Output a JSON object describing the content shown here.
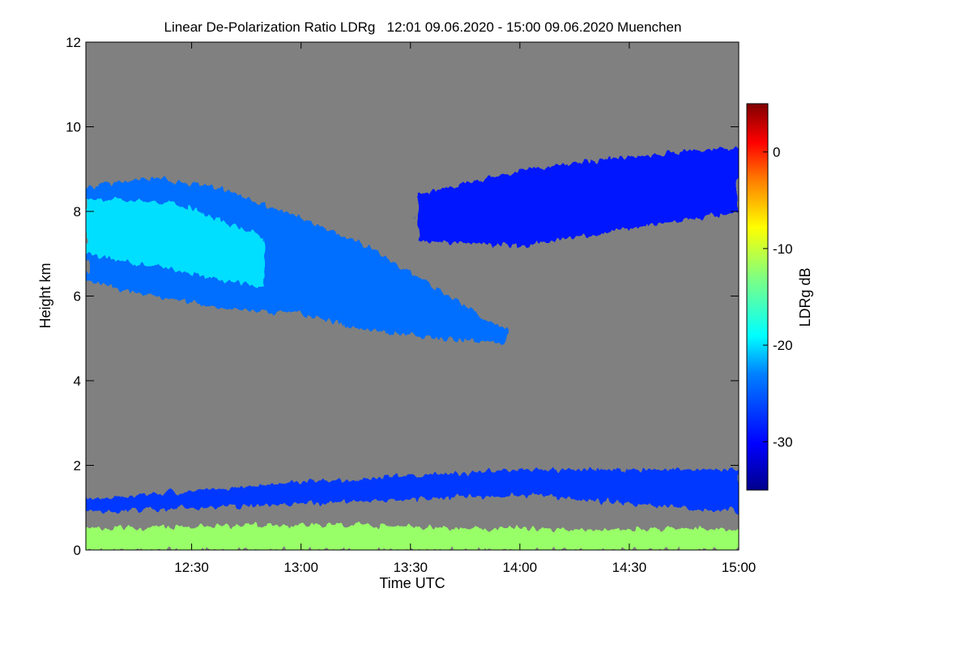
{
  "chart_data": {
    "type": "heatmap",
    "title": "Linear De-Polarization Ratio LDRg   12:01 09.06.2020 - 15:00 09.06.2020 Muenchen",
    "xlabel": "Time UTC",
    "ylabel": "Height km",
    "colorbar_label": "LDRg dB",
    "x_range_minutes_utc": [
      721,
      900
    ],
    "x_ticks": [
      {
        "minute": 750,
        "label": "12:30"
      },
      {
        "minute": 780,
        "label": "13:00"
      },
      {
        "minute": 810,
        "label": "13:30"
      },
      {
        "minute": 840,
        "label": "14:00"
      },
      {
        "minute": 870,
        "label": "14:30"
      },
      {
        "minute": 900,
        "label": "15:00"
      }
    ],
    "y_range_km": [
      0,
      12
    ],
    "y_ticks": [
      {
        "value": 0,
        "label": "0"
      },
      {
        "value": 2,
        "label": "2"
      },
      {
        "value": 4,
        "label": "4"
      },
      {
        "value": 6,
        "label": "6"
      },
      {
        "value": 8,
        "label": "8"
      },
      {
        "value": 10,
        "label": "10"
      },
      {
        "value": 12,
        "label": "12"
      }
    ],
    "colorbar_range_db": [
      -35,
      5
    ],
    "colorbar_ticks": [
      {
        "value": 0,
        "label": "0"
      },
      {
        "value": -10,
        "label": "-10"
      },
      {
        "value": -20,
        "label": "-20"
      },
      {
        "value": -30,
        "label": "-30"
      }
    ],
    "background_color": "#808080",
    "features": [
      {
        "name": "cirrus-main-band",
        "t_start": 721,
        "t_end": 836,
        "top_km": [
          8.6,
          8.8,
          8.5,
          7.9,
          7.2,
          6.2,
          5.2
        ],
        "base_km": [
          6.3,
          6.0,
          5.7,
          5.6,
          5.2,
          5.0,
          4.9
        ],
        "ldr_db": -24
      },
      {
        "name": "cirrus-core",
        "t_start": 721,
        "t_end": 770,
        "top_km": [
          8.3,
          8.2,
          7.4
        ],
        "base_km": [
          7.0,
          6.6,
          6.2
        ],
        "ldr_db": -20
      },
      {
        "name": "cirrus-patches-upper",
        "t_start": 812,
        "t_end": 900,
        "top_km": [
          8.4,
          9.0,
          9.3,
          9.5
        ],
        "base_km": [
          7.3,
          7.2,
          7.6,
          8.0
        ],
        "ldr_db": -29
      },
      {
        "name": "boundary-layer-top",
        "t_start": 721,
        "t_end": 900,
        "top_km": [
          1.2,
          1.6,
          1.9,
          1.9
        ],
        "base_km": [
          0.9,
          1.1,
          1.3,
          0.9
        ],
        "ldr_db": -27
      },
      {
        "name": "near-surface-aerosol",
        "t_start": 721,
        "t_end": 900,
        "top_km": [
          0.5,
          0.6,
          0.5,
          0.5
        ],
        "base_km": [
          0.0,
          0.0,
          0.0,
          0.0
        ],
        "ldr_db": -12
      }
    ]
  }
}
